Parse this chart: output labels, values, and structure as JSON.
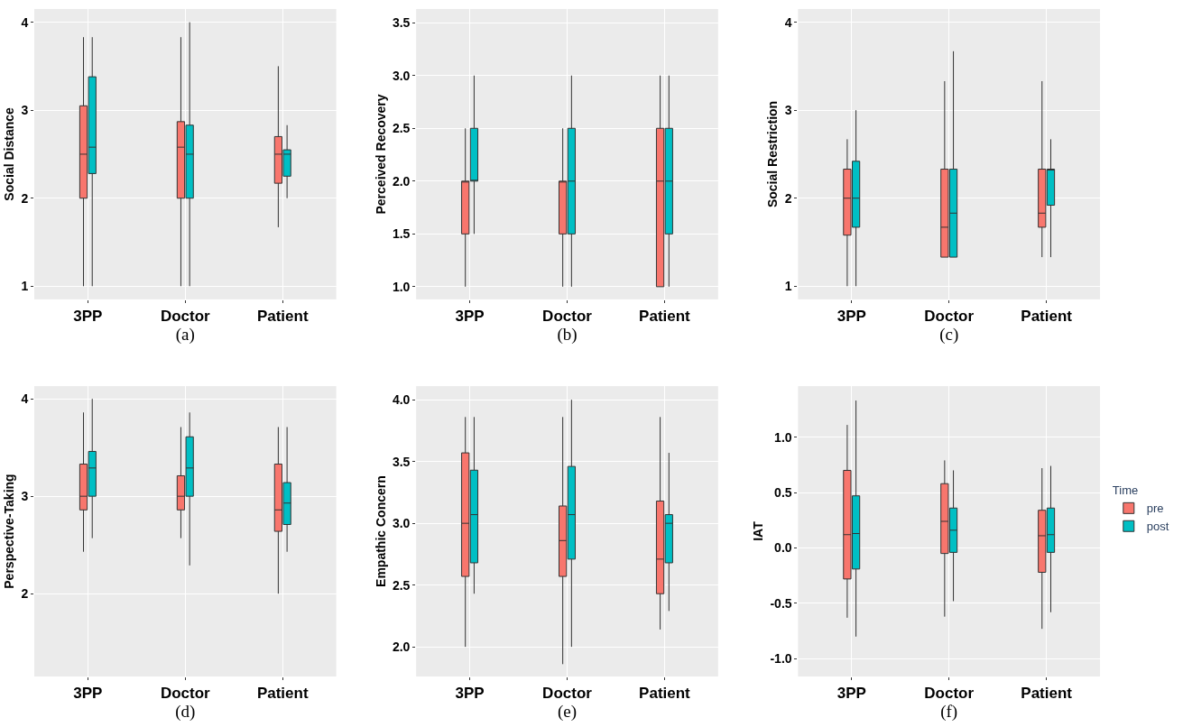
{
  "chart_data": [
    {
      "type": "box",
      "xlabel": "(a)",
      "ylabel": "Social Distance",
      "categories": [
        "3PP",
        "Doctor",
        "Patient"
      ],
      "ylim": [
        0.85,
        4.15
      ],
      "yticks": [
        1,
        2,
        3,
        4
      ],
      "grid": true,
      "series": [
        {
          "color": "#f8766d",
          "boxes": [
            {
              "low": 1,
              "q1": 2,
              "median": 2.5,
              "q3": 3.05,
              "high": 3.83
            },
            {
              "low": 1,
              "q1": 2,
              "median": 2.58,
              "q3": 2.87,
              "high": 3.83
            },
            {
              "low": 1.67,
              "q1": 2.17,
              "median": 2.5,
              "q3": 2.7,
              "high": 3.5
            }
          ]
        },
        {
          "color": "#00bfc4",
          "boxes": [
            {
              "low": 1,
              "q1": 2.28,
              "median": 2.58,
              "q3": 3.38,
              "high": 3.83
            },
            {
              "low": 1,
              "q1": 2,
              "median": 2.5,
              "q3": 2.83,
              "high": 4
            },
            {
              "low": 2,
              "q1": 2.25,
              "median": 2.5,
              "q3": 2.55,
              "high": 2.83
            }
          ]
        }
      ]
    },
    {
      "type": "box",
      "xlabel": "(b)",
      "ylabel": "Perceived Recovery",
      "categories": [
        "3PP",
        "Doctor",
        "Patient"
      ],
      "ylim": [
        0.88,
        3.63
      ],
      "yticks": [
        {
          "value": 1,
          "label": "1.0"
        },
        1.5,
        {
          "value": 2,
          "label": "2.0"
        },
        2.5,
        {
          "value": 3,
          "label": "3.0"
        },
        3.5
      ],
      "grid": true,
      "series": [
        {
          "color": "#f8766d",
          "boxes": [
            {
              "low": 1,
              "q1": 1.5,
              "median": 2,
              "q3": 2,
              "high": 2.5
            },
            {
              "low": 1,
              "q1": 1.5,
              "median": 2,
              "q3": 2,
              "high": 2.5
            },
            {
              "low": 1,
              "q1": 1,
              "median": 2,
              "q3": 2.5,
              "high": 3
            }
          ]
        },
        {
          "color": "#00bfc4",
          "boxes": [
            {
              "low": 1.5,
              "q1": 2,
              "median": 2,
              "q3": 2.5,
              "high": 3
            },
            {
              "low": 1,
              "q1": 1.5,
              "median": 2,
              "q3": 2.5,
              "high": 3
            },
            {
              "low": 1,
              "q1": 1.5,
              "median": 2,
              "q3": 2.5,
              "high": 3
            }
          ]
        }
      ]
    },
    {
      "type": "box",
      "xlabel": "(c)",
      "ylabel": "Social Restriction",
      "categories": [
        "3PP",
        "Doctor",
        "Patient"
      ],
      "ylim": [
        0.85,
        4.15
      ],
      "yticks": [
        1,
        2,
        3,
        4
      ],
      "grid": true,
      "series": [
        {
          "color": "#f8766d",
          "boxes": [
            {
              "low": 1,
              "q1": 1.58,
              "median": 2,
              "q3": 2.33,
              "high": 2.67
            },
            {
              "low": 1.33,
              "q1": 1.33,
              "median": 1.67,
              "q3": 2.33,
              "high": 3.33
            },
            {
              "low": 1.33,
              "q1": 1.67,
              "median": 1.83,
              "q3": 2.33,
              "high": 3.33
            }
          ]
        },
        {
          "color": "#00bfc4",
          "boxes": [
            {
              "low": 1,
              "q1": 1.67,
              "median": 2,
              "q3": 2.42,
              "high": 3
            },
            {
              "low": 1.33,
              "q1": 1.33,
              "median": 1.83,
              "q3": 2.33,
              "high": 3.67
            },
            {
              "low": 1.33,
              "q1": 1.92,
              "median": 2.33,
              "q3": 2.33,
              "high": 2.67
            }
          ]
        }
      ]
    },
    {
      "type": "box",
      "xlabel": "(d)",
      "ylabel": "Perspective-Taking",
      "categories": [
        "3PP",
        "Doctor",
        "Patient"
      ],
      "ylim": [
        1.15,
        4.13
      ],
      "yticks": [
        2,
        3,
        4
      ],
      "grid": true,
      "series": [
        {
          "color": "#f8766d",
          "boxes": [
            {
              "low": 2.43,
              "q1": 2.86,
              "median": 3,
              "q3": 3.33,
              "high": 3.86
            },
            {
              "low": 2.57,
              "q1": 2.86,
              "median": 3,
              "q3": 3.21,
              "high": 3.71
            },
            {
              "low": 2,
              "q1": 2.64,
              "median": 2.86,
              "q3": 3.33,
              "high": 3.71
            }
          ]
        },
        {
          "color": "#00bfc4",
          "boxes": [
            {
              "low": 2.57,
              "q1": 3,
              "median": 3.29,
              "q3": 3.46,
              "high": 4
            },
            {
              "low": 2.29,
              "q1": 3,
              "median": 3.29,
              "q3": 3.61,
              "high": 3.86
            },
            {
              "low": 2.43,
              "q1": 2.71,
              "median": 2.93,
              "q3": 3.14,
              "high": 3.71
            }
          ]
        }
      ]
    },
    {
      "type": "box",
      "xlabel": "(e)",
      "ylabel": "Empathic Concern",
      "categories": [
        "3PP",
        "Doctor",
        "Patient"
      ],
      "ylim": [
        1.76,
        4.11
      ],
      "yticks": [
        {
          "value": 2,
          "label": "2.0"
        },
        2.5,
        {
          "value": 3,
          "label": "3.0"
        },
        3.5,
        {
          "value": 4,
          "label": "4.0"
        }
      ],
      "grid": true,
      "series": [
        {
          "color": "#f8766d",
          "boxes": [
            {
              "low": 2,
              "q1": 2.57,
              "median": 3,
              "q3": 3.57,
              "high": 3.86
            },
            {
              "low": 1.86,
              "q1": 2.57,
              "median": 2.86,
              "q3": 3.14,
              "high": 3.86
            },
            {
              "low": 2.14,
              "q1": 2.43,
              "median": 2.71,
              "q3": 3.18,
              "high": 3.86
            }
          ]
        },
        {
          "color": "#00bfc4",
          "boxes": [
            {
              "low": 2.43,
              "q1": 2.68,
              "median": 3.07,
              "q3": 3.43,
              "high": 3.86
            },
            {
              "low": 2,
              "q1": 2.71,
              "median": 3.07,
              "q3": 3.46,
              "high": 4
            },
            {
              "low": 2.29,
              "q1": 2.68,
              "median": 3,
              "q3": 3.07,
              "high": 3.57
            }
          ]
        }
      ]
    },
    {
      "type": "box",
      "xlabel": "(f)",
      "ylabel": "IAT",
      "categories": [
        "3PP",
        "Doctor",
        "Patient"
      ],
      "ylim": [
        -1.16,
        1.46
      ],
      "yticks": [
        {
          "value": -1,
          "label": "-1.0"
        },
        -0.5,
        {
          "value": 0,
          "label": "0.0"
        },
        0.5,
        {
          "value": 1,
          "label": "1.0"
        }
      ],
      "grid": true,
      "legend": "right",
      "legend_title": "Time",
      "series": [
        {
          "name": "pre",
          "color": "#f8766d",
          "boxes": [
            {
              "low": -0.63,
              "q1": -0.28,
              "median": 0.12,
              "q3": 0.7,
              "high": 1.11
            },
            {
              "low": -0.62,
              "q1": -0.05,
              "median": 0.24,
              "q3": 0.58,
              "high": 0.79
            },
            {
              "low": -0.73,
              "q1": -0.22,
              "median": 0.11,
              "q3": 0.34,
              "high": 0.72
            }
          ]
        },
        {
          "name": "post",
          "color": "#00bfc4",
          "boxes": [
            {
              "low": -0.8,
              "q1": -0.19,
              "median": 0.13,
              "q3": 0.47,
              "high": 1.33
            },
            {
              "low": -0.48,
              "q1": -0.04,
              "median": 0.16,
              "q3": 0.36,
              "high": 0.7
            },
            {
              "low": -0.58,
              "q1": -0.04,
              "median": 0.12,
              "q3": 0.36,
              "high": 0.74
            }
          ]
        }
      ]
    }
  ]
}
